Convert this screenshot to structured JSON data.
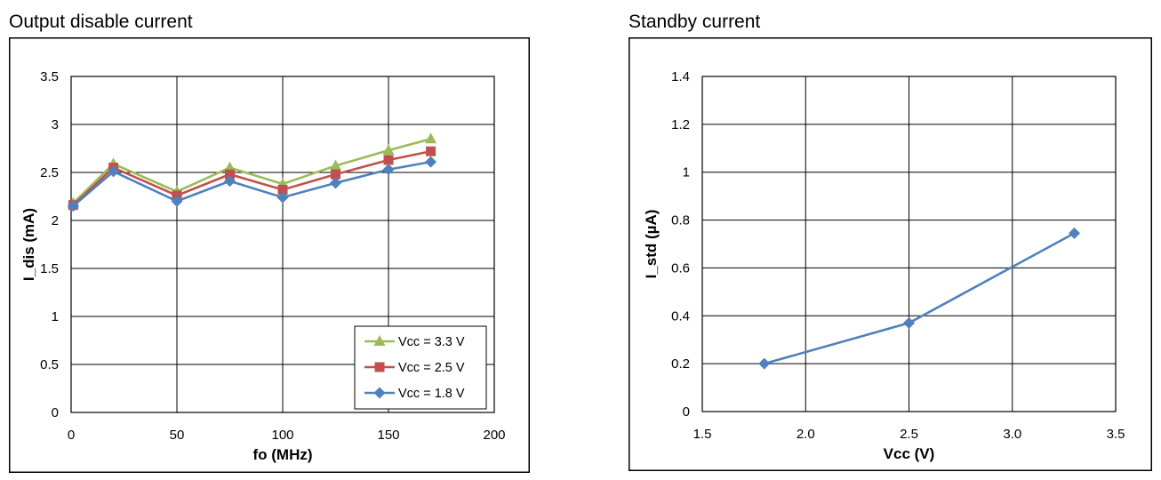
{
  "chart_data": [
    {
      "type": "line",
      "title": "Output disable current",
      "xlabel": "fo (MHz)",
      "ylabel": "I_dis (mA)",
      "xlim": [
        0,
        200
      ],
      "ylim": [
        0,
        3.5
      ],
      "xticks": [
        0,
        50,
        100,
        150,
        200
      ],
      "xtick_labels": [
        "0",
        "50",
        "100",
        "150",
        "200"
      ],
      "yticks": [
        0,
        0.5,
        1,
        1.5,
        2,
        2.5,
        3,
        3.5
      ],
      "ytick_labels": [
        "0",
        "0.5",
        "1",
        "1.5",
        "2",
        "2.5",
        "3",
        "3.5"
      ],
      "grid": true,
      "legend_position": "bottom-right",
      "x": [
        1,
        20,
        50,
        75,
        100,
        125,
        150,
        170
      ],
      "series": [
        {
          "name": "Vcc = 3.3 V",
          "color": "#9bbb59",
          "marker": "triangle",
          "values": [
            2.18,
            2.59,
            2.3,
            2.55,
            2.38,
            2.57,
            2.73,
            2.85
          ]
        },
        {
          "name": "Vcc = 2.5 V",
          "color": "#c0504d",
          "marker": "square",
          "values": [
            2.16,
            2.55,
            2.26,
            2.48,
            2.32,
            2.48,
            2.63,
            2.72
          ]
        },
        {
          "name": "Vcc = 1.8 V",
          "color": "#4f81bd",
          "marker": "diamond",
          "values": [
            2.15,
            2.51,
            2.2,
            2.41,
            2.24,
            2.39,
            2.53,
            2.61
          ]
        }
      ]
    },
    {
      "type": "line",
      "title": "Standby current",
      "xlabel": "Vcc (V)",
      "ylabel": "I_std (µA)",
      "xlim": [
        1.5,
        3.5
      ],
      "ylim": [
        0,
        1.4
      ],
      "xticks": [
        1.5,
        2.0,
        2.5,
        3.0,
        3.5
      ],
      "xtick_labels": [
        "1.5",
        "2.0",
        "2.5",
        "3.0",
        "3.5"
      ],
      "yticks": [
        0,
        0.2,
        0.4,
        0.6,
        0.8,
        1,
        1.2,
        1.4
      ],
      "ytick_labels": [
        "0",
        "0.2",
        "0.4",
        "0.6",
        "0.8",
        "1",
        "1.2",
        "1.4"
      ],
      "grid": true,
      "series": [
        {
          "name": "Vcc",
          "color": "#4f81bd",
          "marker": "diamond",
          "x": [
            1.8,
            2.5,
            3.3
          ],
          "values": [
            0.2,
            0.37,
            0.745
          ]
        }
      ]
    }
  ]
}
